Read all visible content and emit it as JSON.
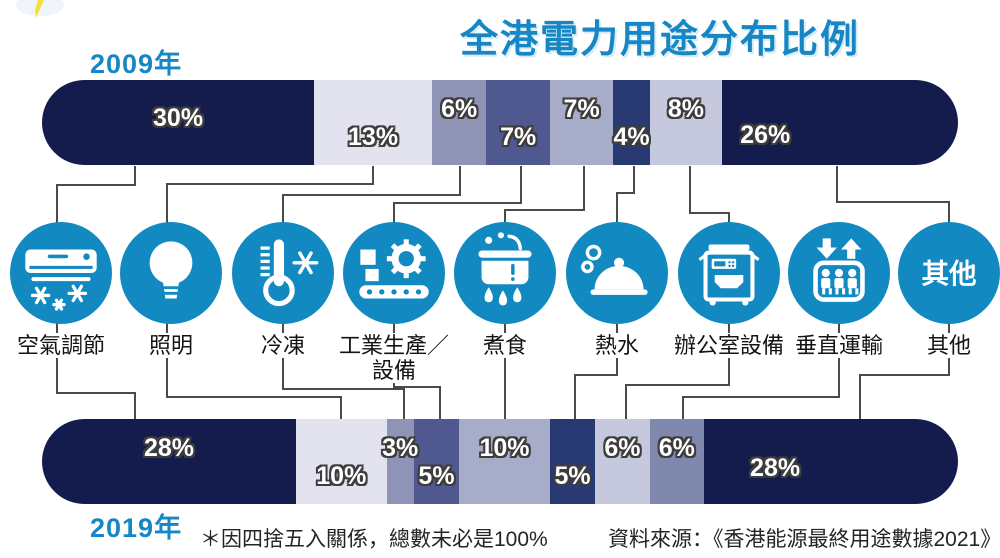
{
  "title": "全港電力用途分布比例",
  "footnote": "＊因四捨五入關係，總數未必是100%",
  "source": "資料來源：《香港能源最終用途數據2021》",
  "bars": {
    "b2009": {
      "year_label": "2009年"
    },
    "b2019": {
      "year_label": "2019年"
    }
  },
  "colors": {
    "title_blue": "#1687c4",
    "icon_circle": "#1289c0",
    "connector": "#4a4a4a",
    "navy": "#131c4d",
    "lightning_yellow": "#f3df3e"
  },
  "categories": [
    {
      "label": "空氣調節",
      "icon": "air-conditioner-icon",
      "color": "#131c4d"
    },
    {
      "label": "照明",
      "icon": "lightbulb-icon",
      "color": "#e2e3ef"
    },
    {
      "label": "冷凍",
      "icon": "refrigeration-icon",
      "color": "#8f93b6"
    },
    {
      "label": "工業生產／設備",
      "icon": "industrial-production-icon",
      "color": "#4f5990",
      "label_lines": [
        "工業生產／",
        "設備"
      ]
    },
    {
      "label": "煮食",
      "icon": "cooking-icon",
      "color": "#a7acc8"
    },
    {
      "label": "熱水",
      "icon": "hot-water-icon",
      "color": "#293972"
    },
    {
      "label": "辦公室設備",
      "icon": "office-equipment-icon",
      "color": "#c6c9dd"
    },
    {
      "label": "垂直運輸",
      "icon": "elevator-icon",
      "color": "#8188ae"
    },
    {
      "label": "其他",
      "icon": "others-icon",
      "color": "#131c4d",
      "icon_text": "其他"
    }
  ],
  "chart_data": {
    "type": "bar",
    "variant": "horizontal-stacked",
    "unit": "%",
    "title": "全港電力用途分布比例",
    "categories": [
      "空氣調節",
      "照明",
      "冷凍",
      "工業生產／設備",
      "煮食",
      "熱水",
      "辦公室設備",
      "垂直運輸",
      "其他"
    ],
    "series": [
      {
        "name": "2009年",
        "values": [
          30,
          13,
          6,
          7,
          7,
          4,
          8,
          null,
          26
        ]
      },
      {
        "name": "2019年",
        "values": [
          28,
          10,
          3,
          5,
          10,
          5,
          6,
          6,
          28
        ]
      }
    ],
    "value_label_positions": {
      "b2009": [
        "mid",
        "low",
        "high",
        "low",
        "high",
        "low",
        "high",
        "end"
      ],
      "b2019": [
        "high",
        "low",
        "high",
        "low",
        "high",
        "low",
        "high",
        "high",
        "end"
      ]
    },
    "note": "＊因四捨五入關係，總數未必是100%",
    "source": "資料來源：《香港能源最終用途數據2021》",
    "legend_position": "none",
    "grid": false
  }
}
